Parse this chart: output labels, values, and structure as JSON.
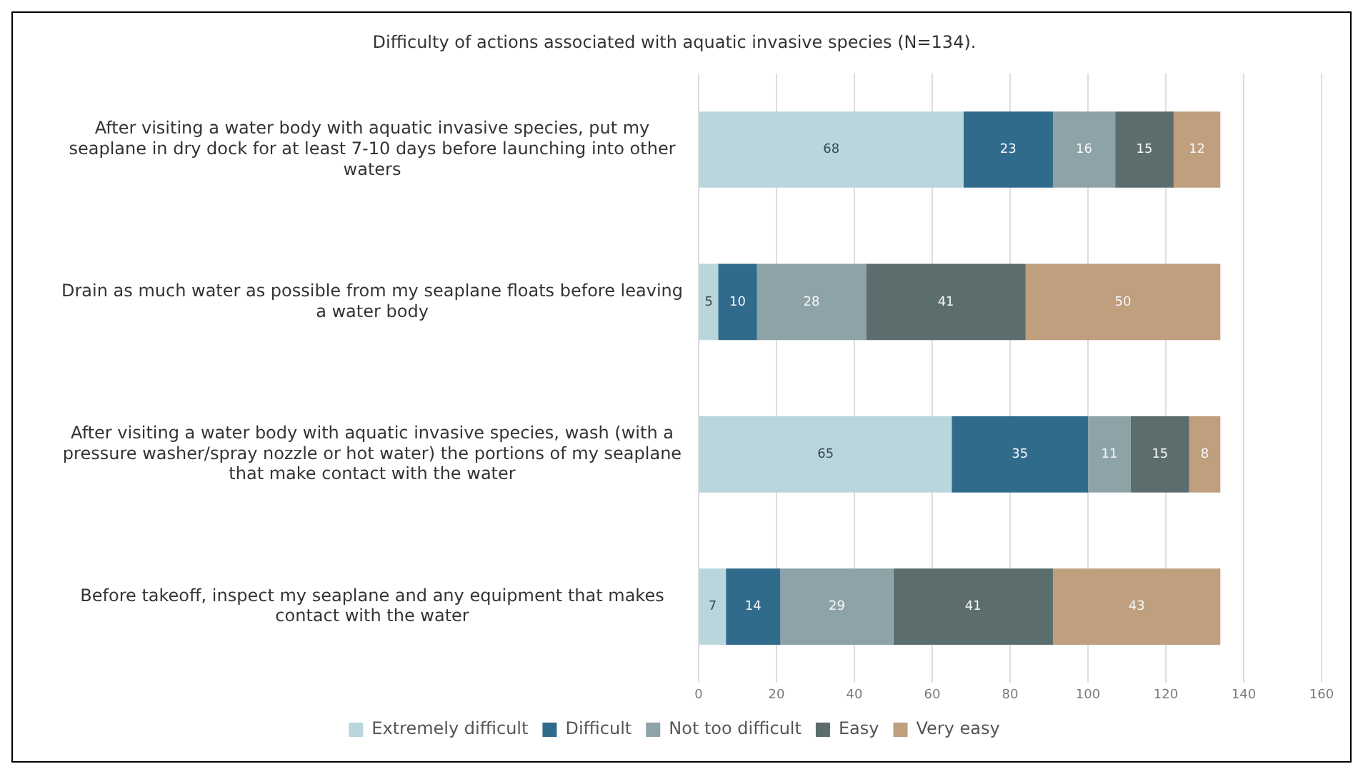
{
  "chart_data": {
    "type": "bar",
    "orientation": "horizontal",
    "stacked": true,
    "title": "Difficulty of actions associated with aquatic invasive species (N=134).",
    "categories": [
      "After visiting a water body with aquatic invasive species, put my seaplane in dry dock for at least 7-10 days before launching into other waters",
      "Drain as much water as possible from my seaplane floats before leaving a water body",
      "After visiting a water body with aquatic invasive species, wash (with a pressure washer/spray nozzle or hot water) the portions of my seaplane that make contact with the water",
      "Before takeoff, inspect my seaplane and any equipment that makes contact with the water"
    ],
    "series": [
      {
        "name": "Extremely difficult",
        "color": "#b9d6dd",
        "values": [
          68,
          5,
          65,
          7
        ]
      },
      {
        "name": "Difficult",
        "color": "#316b8c",
        "values": [
          23,
          10,
          35,
          14
        ]
      },
      {
        "name": "Not too difficult",
        "color": "#8ea3a8",
        "values": [
          16,
          28,
          11,
          29
        ]
      },
      {
        "name": "Easy",
        "color": "#5b6d6c",
        "values": [
          15,
          41,
          15,
          41
        ]
      },
      {
        "name": "Very easy",
        "color": "#bf9f7e",
        "values": [
          12,
          50,
          8,
          43
        ]
      }
    ],
    "xlim": [
      0,
      160
    ],
    "xticks": [
      0,
      20,
      40,
      60,
      80,
      100,
      120,
      140,
      160
    ],
    "grid": "x",
    "legend": "bottom",
    "data_labels": true
  }
}
